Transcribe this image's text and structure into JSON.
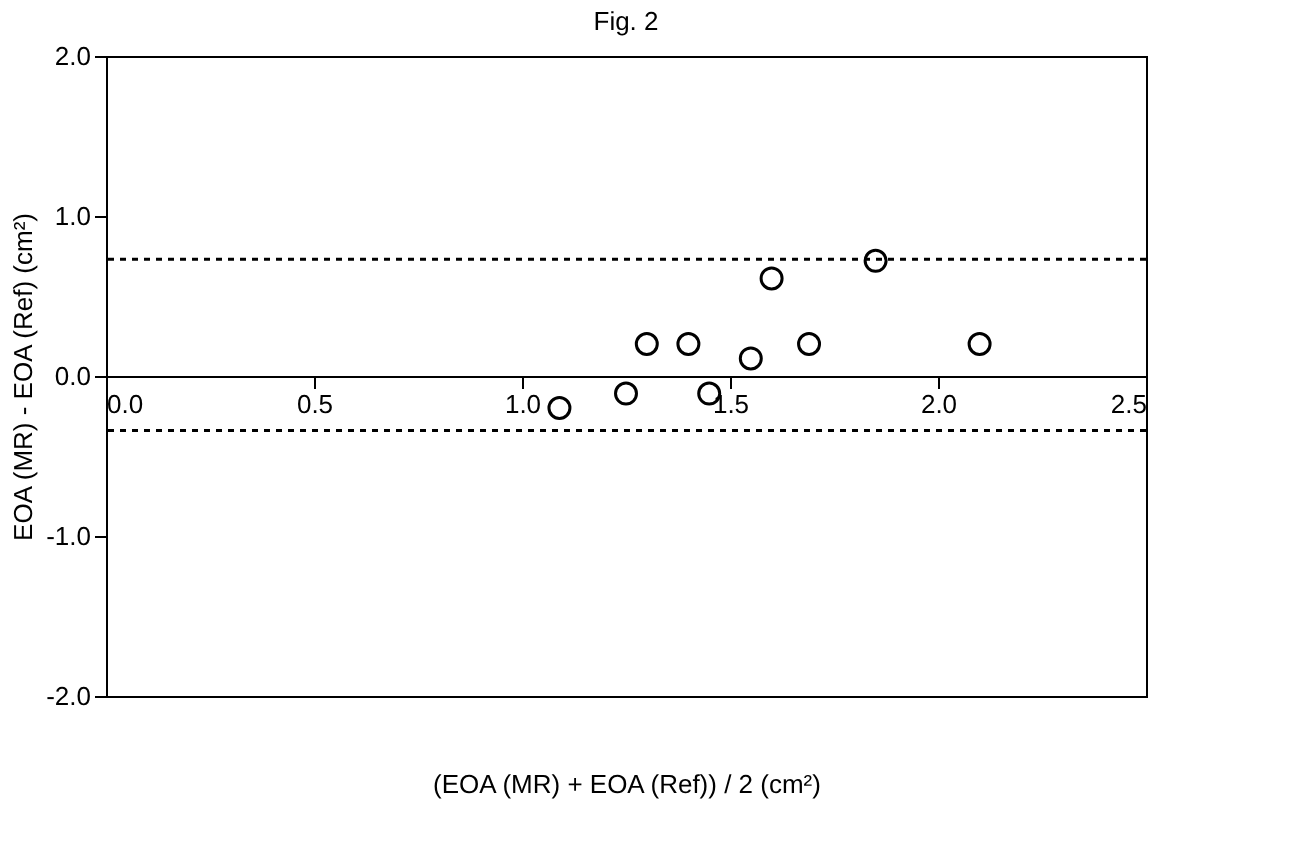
{
  "chart_data": {
    "type": "scatter",
    "title": "Fig. 2",
    "xlabel": "(EOA (MR) + EOA (Ref)) / 2 (cm²)",
    "ylabel": "EOA (MR) - EOA (Ref) (cm²)",
    "x": [
      1.09,
      1.25,
      1.3,
      1.4,
      1.45,
      1.55,
      1.6,
      1.69,
      1.85,
      2.1
    ],
    "series": [
      {
        "color": "#000000",
        "values": [
          -0.2,
          -0.11,
          0.2,
          0.2,
          -0.11,
          0.11,
          0.61,
          0.2,
          0.72,
          0.2
        ]
      }
    ],
    "xlim": [
      0,
      2.5
    ],
    "xticks": [
      {
        "value": 0,
        "label": "0.0"
      },
      0.5,
      {
        "value": 1,
        "label": "1.0"
      },
      1.5,
      {
        "value": 2,
        "label": "2.0"
      },
      2.5
    ],
    "ylim": [
      -2,
      2
    ],
    "yticks": [
      {
        "value": -2,
        "label": "-2.0"
      },
      {
        "value": -1,
        "label": "-1.0"
      },
      {
        "value": 0,
        "label": "0.0"
      },
      {
        "value": 1,
        "label": "1.0"
      },
      {
        "value": 2,
        "label": "2.0"
      }
    ],
    "ref_lines": [
      {
        "axis": "y",
        "value": 0.73,
        "line_style": "dotted"
      },
      {
        "axis": "y",
        "value": -0.34,
        "line_style": "dotted"
      }
    ],
    "grid": false,
    "marker": "circle"
  }
}
